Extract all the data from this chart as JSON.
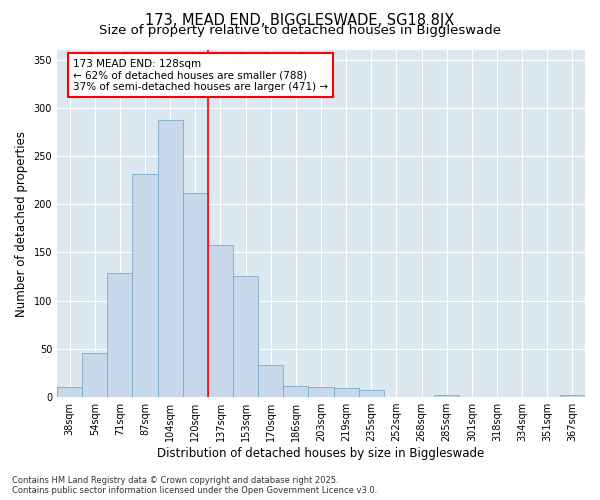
{
  "title_line1": "173, MEAD END, BIGGLESWADE, SG18 8JX",
  "title_line2": "Size of property relative to detached houses in Biggleswade",
  "xlabel": "Distribution of detached houses by size in Biggleswade",
  "ylabel": "Number of detached properties",
  "bar_labels": [
    "38sqm",
    "54sqm",
    "71sqm",
    "87sqm",
    "104sqm",
    "120sqm",
    "137sqm",
    "153sqm",
    "170sqm",
    "186sqm",
    "203sqm",
    "219sqm",
    "235sqm",
    "252sqm",
    "268sqm",
    "285sqm",
    "301sqm",
    "318sqm",
    "334sqm",
    "351sqm",
    "367sqm"
  ],
  "bar_values": [
    10,
    46,
    129,
    231,
    287,
    212,
    158,
    126,
    33,
    11,
    10,
    9,
    7,
    0,
    0,
    2,
    0,
    0,
    0,
    0,
    2
  ],
  "bar_color": "#c8d8eb",
  "bar_edge_color": "#7aaac8",
  "vline_x": 5.5,
  "vline_color": "red",
  "annotation_text": "173 MEAD END: 128sqm\n← 62% of detached houses are smaller (788)\n37% of semi-detached houses are larger (471) →",
  "annotation_box_color": "white",
  "annotation_box_edge_color": "red",
  "ylim": [
    0,
    360
  ],
  "yticks": [
    0,
    50,
    100,
    150,
    200,
    250,
    300,
    350
  ],
  "background_color": "#dce8f0",
  "footer_line1": "Contains HM Land Registry data © Crown copyright and database right 2025.",
  "footer_line2": "Contains public sector information licensed under the Open Government Licence v3.0.",
  "title_fontsize": 10.5,
  "subtitle_fontsize": 9.5,
  "axis_label_fontsize": 8.5,
  "tick_fontsize": 7,
  "annotation_fontsize": 7.5,
  "footer_fontsize": 6
}
